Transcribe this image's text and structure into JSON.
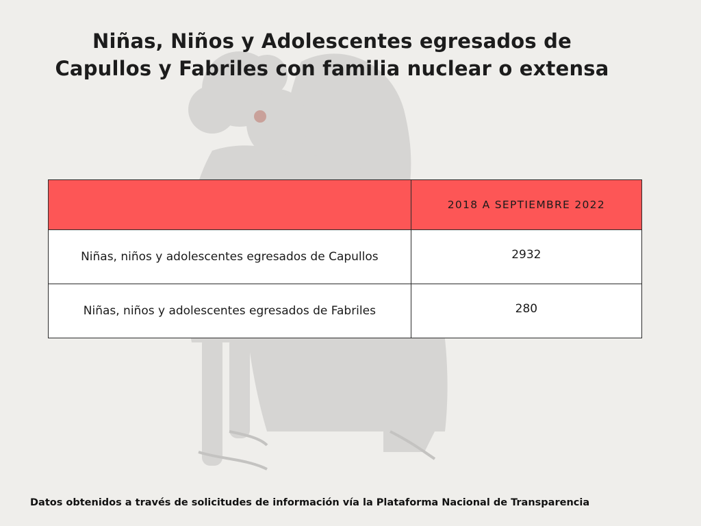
{
  "title": "Niñas, Niños y Adolescentes egresados de Capullos y Fabriles con familia nuclear o extensa",
  "table": {
    "header": {
      "label": "",
      "period": "2018 A SEPTIEMBRE 2022"
    },
    "rows": [
      {
        "label": "Niñas, niños y adolescentes egresados de Capullos",
        "value": "2932"
      },
      {
        "label": "Niñas, niños y adolescentes egresados de Fabriles",
        "value": "280"
      }
    ]
  },
  "footer": "Datos obtenidos a través de solicitudes de información vía la Plataforma Nacional de Transparencia",
  "colors": {
    "background": "#efeeeb",
    "header_fill": "#fd5656",
    "illustration": "#d6d5d3"
  }
}
